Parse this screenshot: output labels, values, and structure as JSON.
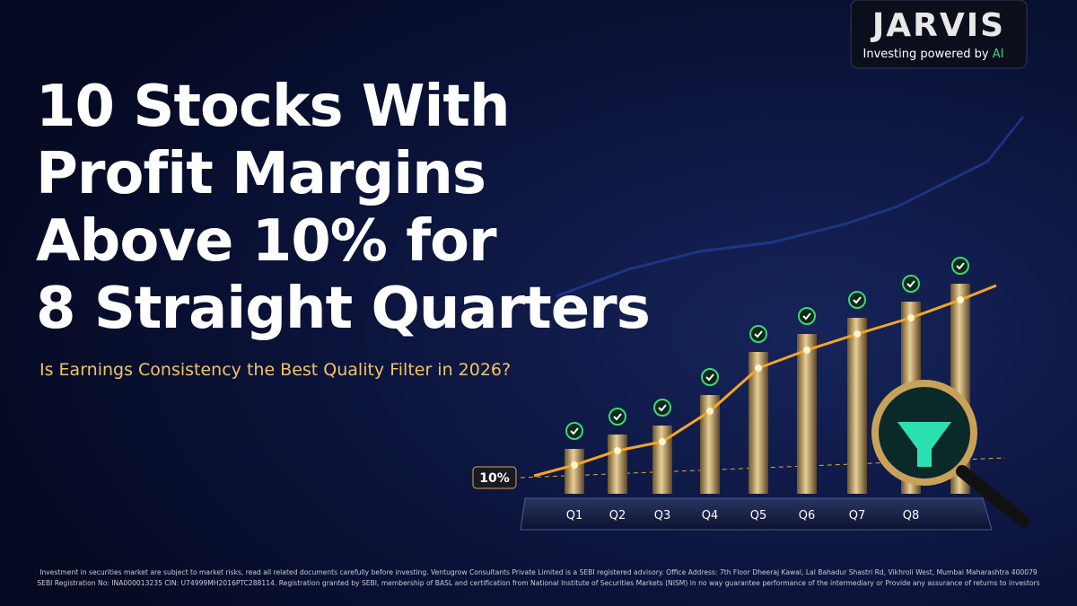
{
  "logo": {
    "name": "JARVIS",
    "tagline": "Investing powered by",
    "tagline_highlight": "AI"
  },
  "headline": {
    "lines": [
      "10 Stocks With",
      "Profit Margins",
      "Above 10% for",
      "8 Straight Quarters"
    ],
    "subtitle": "Is Earnings Consistency the Best Quality Filter in 2026?"
  },
  "illustration": {
    "threshold_label": "10%",
    "quarters": [
      "Q1",
      "Q2",
      "Q3",
      "Q4",
      "Q5",
      "Q6",
      "Q7",
      "Q8"
    ]
  },
  "disclaimer": [
    "Investment in securities market are subject to market risks, read all related documents carefully before investing. Ventugrow Consultants Private Limited is a SEBI registered advisory. Office Address: 7th Floor Dheeraj Kawal, Lal Bahadur Shastri Rd, Vikhroli West, Mumbai Maharashtra 400079",
    "SEBI Registration No: INA000013235 CIN: U74999MH2016PTC288114. Registration granted by SEBI, membership of BASL and certification from National Institute of Securities Markets (NISM) in no way guarantee performance of the intermediary or Provide any assurance of returns to investors"
  ]
}
